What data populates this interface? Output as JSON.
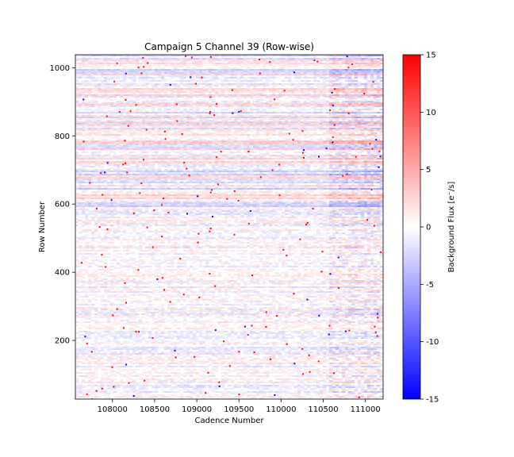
{
  "chart_data": {
    "type": "heatmap",
    "title": "Campaign 5 Channel 39 (Row-wise)",
    "xlabel": "Cadence Number",
    "ylabel": "Row Number",
    "xlim": [
      107560,
      111210
    ],
    "ylim": [
      28,
      1038
    ],
    "xticks": [
      108000,
      108500,
      109000,
      109500,
      110000,
      110500,
      111000
    ],
    "yticks": [
      200,
      400,
      600,
      800,
      1000
    ],
    "colorbar": {
      "label": "Background Flux [e$^-$/s]",
      "label_display": "Background Flux [e⁻/s]",
      "range": [
        -15,
        15
      ],
      "ticks": [
        -15,
        -10,
        -5,
        0,
        5,
        10,
        15
      ],
      "colormap": "bwr",
      "colors": {
        "low": "#0000ff",
        "mid": "#ffffff",
        "high": "#ff0000"
      }
    },
    "description_of_field": "Row-wise background flux residuals; faint horizontal red/blue striping, mostly near zero, stronger banding above row 600 and near the right edge, with scattered saturated pixels."
  }
}
